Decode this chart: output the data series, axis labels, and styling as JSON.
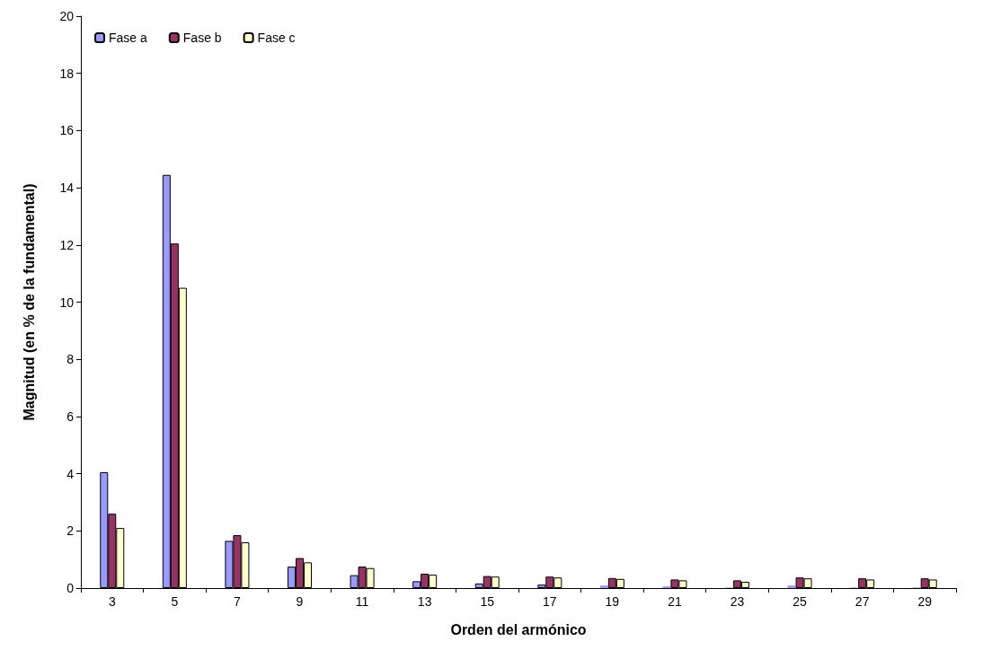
{
  "chart_data": {
    "type": "bar",
    "xlabel": "Orden del armónico",
    "ylabel": "Magnitud (en % de la fundamental)",
    "categories": [
      "3",
      "5",
      "7",
      "9",
      "11",
      "13",
      "15",
      "17",
      "19",
      "21",
      "23",
      "25",
      "27",
      "29"
    ],
    "series": [
      {
        "name": "Fase a",
        "color": "#9999ff",
        "values": [
          4.05,
          14.45,
          1.65,
          0.75,
          0.45,
          0.24,
          0.16,
          0.12,
          0.09,
          0.06,
          0.02,
          0.09,
          0.02,
          0.02
        ]
      },
      {
        "name": "Fase b",
        "color": "#993366",
        "values": [
          2.6,
          12.05,
          1.85,
          1.05,
          0.75,
          0.5,
          0.42,
          0.4,
          0.35,
          0.3,
          0.27,
          0.37,
          0.34,
          0.34
        ]
      },
      {
        "name": "Fase c",
        "color": "#ffffcc",
        "values": [
          2.1,
          10.5,
          1.6,
          0.9,
          0.7,
          0.47,
          0.4,
          0.37,
          0.32,
          0.27,
          0.22,
          0.34,
          0.3,
          0.3
        ]
      }
    ],
    "ylim": [
      0,
      20
    ],
    "yticks": [
      0,
      2,
      4,
      6,
      8,
      10,
      12,
      14,
      16,
      18,
      20
    ],
    "grid": false,
    "legend": "top left"
  }
}
